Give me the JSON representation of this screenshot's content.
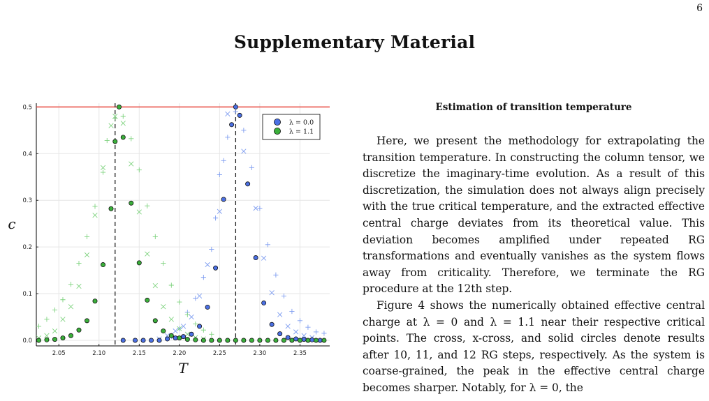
{
  "page": {
    "number": "6",
    "title": "Supplementary Material"
  },
  "section": {
    "heading": "Estimation of transition temperature",
    "paragraphs": [
      "Here, we present the methodology for extrapolating the transition temperature. In constructing the column tensor, we discretize the imaginary-time evolution. As a result of this discretization, the simulation does not always align precisely with the true critical temperature, and the extracted effective central charge deviates from its theoretical value. This deviation becomes amplified under repeated RG transformations and eventually vanishes as the system flows away from criticality. Therefore, we terminate the RG procedure at the 12th step.",
      "Figure 4 shows the numerically obtained effective central charge at λ = 0 and λ = 1.1 near their respective critical points. The cross, x-cross, and solid circles denote results after 10, 11, and 12 RG steps, respectively. As the system is coarse-grained, the peak in the effective central charge becomes sharper. Notably, for λ = 0, the"
    ]
  },
  "chart_data": {
    "type": "scatter",
    "xlabel": "T",
    "ylabel": "c",
    "xlim": [
      2.022,
      2.387
    ],
    "ylim": [
      -0.012,
      0.508
    ],
    "xticks": [
      "2.05",
      "2.10",
      "2.15",
      "2.20",
      "2.25",
      "2.30",
      "2.35"
    ],
    "yticks": [
      "0.0",
      "0.1",
      "0.2",
      "0.3",
      "0.4",
      "0.5"
    ],
    "grid": true,
    "legend_position": "top-right",
    "reference_line": {
      "y": 0.5,
      "color": "#e8473f"
    },
    "vertical_lines": [
      2.12,
      2.27
    ],
    "colors": {
      "lambda_0": "#4a6fe3",
      "lambda_1_1": "#3aaf3a",
      "lambda_0_light": "#7d9cf0",
      "lambda_1_1_light": "#7fd37f"
    },
    "legend": [
      "λ = 0.0",
      "λ = 1.1"
    ],
    "series": [
      {
        "name": "λ = 0.0",
        "marker": "circle",
        "group": "lambda_0",
        "points": [
          [
            2.13,
            0.0
          ],
          [
            2.145,
            0.0
          ],
          [
            2.155,
            0.0
          ],
          [
            2.165,
            0.0
          ],
          [
            2.175,
            0.0
          ],
          [
            2.185,
            0.003
          ],
          [
            2.195,
            0.005
          ],
          [
            2.205,
            0.008
          ],
          [
            2.215,
            0.013
          ],
          [
            2.225,
            0.03
          ],
          [
            2.235,
            0.071
          ],
          [
            2.245,
            0.155
          ],
          [
            2.255,
            0.302
          ],
          [
            2.265,
            0.462
          ],
          [
            2.27,
            0.5
          ],
          [
            2.275,
            0.482
          ],
          [
            2.285,
            0.335
          ],
          [
            2.295,
            0.177
          ],
          [
            2.305,
            0.08
          ],
          [
            2.315,
            0.034
          ],
          [
            2.325,
            0.014
          ],
          [
            2.335,
            0.006
          ],
          [
            2.345,
            0.003
          ],
          [
            2.355,
            0.002
          ],
          [
            2.365,
            0.001
          ],
          [
            2.375,
            0.0
          ]
        ]
      },
      {
        "marker": "x",
        "group": "lambda_0",
        "points": [
          [
            2.175,
            0.003
          ],
          [
            2.185,
            0.01
          ],
          [
            2.195,
            0.02
          ],
          [
            2.205,
            0.03
          ],
          [
            2.215,
            0.05
          ],
          [
            2.225,
            0.095
          ],
          [
            2.235,
            0.162
          ],
          [
            2.25,
            0.276
          ],
          [
            2.26,
            0.485
          ],
          [
            2.28,
            0.405
          ],
          [
            2.295,
            0.283
          ],
          [
            2.305,
            0.176
          ],
          [
            2.315,
            0.102
          ],
          [
            2.325,
            0.055
          ],
          [
            2.335,
            0.03
          ],
          [
            2.345,
            0.018
          ],
          [
            2.355,
            0.01
          ],
          [
            2.365,
            0.006
          ]
        ]
      },
      {
        "marker": "plus",
        "group": "lambda_0",
        "points": [
          [
            2.19,
            0.008
          ],
          [
            2.2,
            0.025
          ],
          [
            2.21,
            0.06
          ],
          [
            2.22,
            0.09
          ],
          [
            2.23,
            0.135
          ],
          [
            2.24,
            0.195
          ],
          [
            2.245,
            0.262
          ],
          [
            2.25,
            0.355
          ],
          [
            2.255,
            0.385
          ],
          [
            2.26,
            0.435
          ],
          [
            2.27,
            0.49
          ],
          [
            2.28,
            0.45
          ],
          [
            2.29,
            0.37
          ],
          [
            2.3,
            0.283
          ],
          [
            2.31,
            0.205
          ],
          [
            2.32,
            0.14
          ],
          [
            2.33,
            0.095
          ],
          [
            2.34,
            0.062
          ],
          [
            2.35,
            0.042
          ],
          [
            2.36,
            0.028
          ],
          [
            2.37,
            0.018
          ],
          [
            2.38,
            0.015
          ]
        ]
      },
      {
        "name": "λ = 1.1",
        "marker": "circle",
        "group": "lambda_1_1",
        "points": [
          [
            2.025,
            0.0
          ],
          [
            2.035,
            0.001
          ],
          [
            2.045,
            0.002
          ],
          [
            2.055,
            0.005
          ],
          [
            2.065,
            0.01
          ],
          [
            2.075,
            0.022
          ],
          [
            2.085,
            0.042
          ],
          [
            2.095,
            0.084
          ],
          [
            2.105,
            0.162
          ],
          [
            2.115,
            0.282
          ],
          [
            2.12,
            0.426
          ],
          [
            2.125,
            0.5
          ],
          [
            2.13,
            0.435
          ],
          [
            2.14,
            0.294
          ],
          [
            2.15,
            0.166
          ],
          [
            2.16,
            0.086
          ],
          [
            2.17,
            0.042
          ],
          [
            2.18,
            0.02
          ],
          [
            2.19,
            0.01
          ],
          [
            2.2,
            0.005
          ],
          [
            2.21,
            0.002
          ],
          [
            2.22,
            0.001
          ],
          [
            2.23,
            0.0
          ],
          [
            2.24,
            0.0
          ],
          [
            2.25,
            0.0
          ],
          [
            2.26,
            0.0
          ],
          [
            2.27,
            0.0
          ],
          [
            2.28,
            0.0
          ],
          [
            2.29,
            0.0
          ],
          [
            2.3,
            0.0
          ],
          [
            2.31,
            0.0
          ],
          [
            2.32,
            0.0
          ],
          [
            2.33,
            0.0
          ],
          [
            2.34,
            0.0
          ],
          [
            2.35,
            0.0
          ],
          [
            2.36,
            0.0
          ],
          [
            2.37,
            0.0
          ],
          [
            2.38,
            0.0
          ]
        ]
      },
      {
        "marker": "x",
        "group": "lambda_1_1",
        "points": [
          [
            2.025,
            0.005
          ],
          [
            2.035,
            0.01
          ],
          [
            2.045,
            0.02
          ],
          [
            2.055,
            0.045
          ],
          [
            2.065,
            0.072
          ],
          [
            2.075,
            0.116
          ],
          [
            2.085,
            0.183
          ],
          [
            2.095,
            0.268
          ],
          [
            2.105,
            0.37
          ],
          [
            2.115,
            0.46
          ],
          [
            2.12,
            0.48
          ],
          [
            2.13,
            0.465
          ],
          [
            2.14,
            0.378
          ],
          [
            2.15,
            0.275
          ],
          [
            2.16,
            0.185
          ],
          [
            2.17,
            0.117
          ],
          [
            2.18,
            0.072
          ],
          [
            2.19,
            0.045
          ],
          [
            2.2,
            0.025
          ],
          [
            2.21,
            0.013
          ],
          [
            2.22,
            0.006
          ],
          [
            2.23,
            0.003
          ]
        ]
      },
      {
        "marker": "plus",
        "group": "lambda_1_1",
        "points": [
          [
            2.025,
            0.03
          ],
          [
            2.035,
            0.045
          ],
          [
            2.045,
            0.065
          ],
          [
            2.055,
            0.087
          ],
          [
            2.065,
            0.12
          ],
          [
            2.075,
            0.165
          ],
          [
            2.085,
            0.222
          ],
          [
            2.095,
            0.287
          ],
          [
            2.105,
            0.36
          ],
          [
            2.11,
            0.428
          ],
          [
            2.12,
            0.476
          ],
          [
            2.13,
            0.48
          ],
          [
            2.14,
            0.432
          ],
          [
            2.15,
            0.365
          ],
          [
            2.16,
            0.288
          ],
          [
            2.17,
            0.222
          ],
          [
            2.18,
            0.165
          ],
          [
            2.19,
            0.118
          ],
          [
            2.2,
            0.082
          ],
          [
            2.21,
            0.055
          ],
          [
            2.22,
            0.035
          ],
          [
            2.23,
            0.022
          ],
          [
            2.24,
            0.013
          ]
        ]
      }
    ]
  }
}
